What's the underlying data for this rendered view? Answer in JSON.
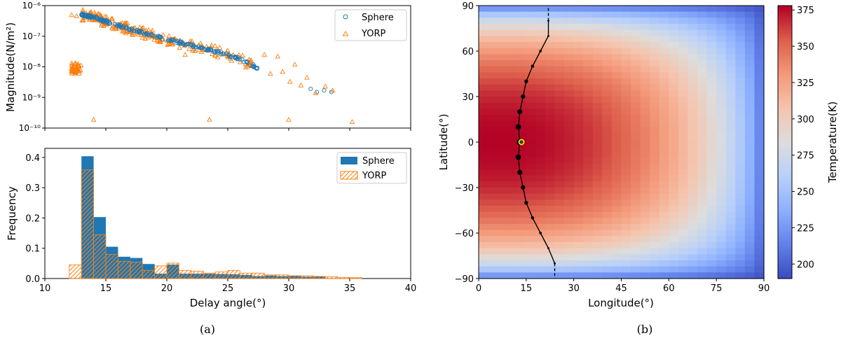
{
  "chart_data": [
    {
      "type": "scatter",
      "xlabel": "",
      "ylabel": "Magnitude(N/m²)",
      "xlim": [
        10,
        40
      ],
      "yscale": "log",
      "ylim": [
        1e-10,
        1e-06
      ],
      "y_ticks": [
        "10⁻¹⁰",
        "10⁻⁹",
        "10⁻⁸",
        "10⁻⁷",
        "10⁻⁶"
      ],
      "y_tick_values": [
        1e-10,
        1e-09,
        1e-08,
        1e-07,
        1e-06
      ],
      "legend": [
        "Sphere",
        "YORP"
      ],
      "legend_position": "top-right",
      "colors": {
        "sphere": "#1f77b4",
        "yorp": "#ff7f0e"
      },
      "sphere_trend": [
        [
          13,
          5e-07
        ],
        [
          14,
          4.2e-07
        ],
        [
          15,
          3e-07
        ],
        [
          16,
          2.3e-07
        ],
        [
          17,
          1.7e-07
        ],
        [
          18,
          1.3e-07
        ],
        [
          20,
          8e-08
        ],
        [
          22,
          5e-08
        ],
        [
          24,
          3.2e-08
        ],
        [
          26,
          1.8e-08
        ],
        [
          27.5,
          9e-09
        ]
      ],
      "sphere_outliers": [
        [
          31.8,
          1.9e-09
        ],
        [
          32.3,
          1.5e-09
        ],
        [
          32.9,
          1.7e-09
        ],
        [
          33.5,
          1.5e-09
        ]
      ],
      "yorp_outliers": [
        [
          12.2,
          5e-07
        ],
        [
          12.6,
          4.6e-07
        ],
        [
          14,
          1.9e-10
        ],
        [
          21.5,
          2.5e-08
        ],
        [
          23.5,
          1.9e-10
        ],
        [
          26.8,
          1.2e-08
        ],
        [
          28,
          2.5e-08
        ],
        [
          28.5,
          6e-09
        ],
        [
          29.1,
          2.2e-08
        ],
        [
          29.5,
          7e-09
        ],
        [
          30.1,
          3.3e-09
        ],
        [
          30.5,
          1.2e-08
        ],
        [
          31,
          2.5e-09
        ],
        [
          31.5,
          4.5e-09
        ],
        [
          32.2,
          1.4e-09
        ],
        [
          33,
          2.3e-09
        ],
        [
          33.6,
          1.7e-09
        ],
        [
          30,
          1.9e-10
        ],
        [
          35.2,
          1.6e-10
        ]
      ]
    },
    {
      "type": "bar",
      "xlabel": "Delay angle(°)",
      "ylabel": "Frequency",
      "xlim": [
        10,
        40
      ],
      "ylim": [
        0,
        0.43
      ],
      "x_ticks": [
        "10",
        "15",
        "20",
        "25",
        "30",
        "35",
        "40"
      ],
      "y_ticks": [
        "0.0",
        "0.1",
        "0.2",
        "0.3",
        "0.4"
      ],
      "legend": [
        "Sphere",
        "YORP"
      ],
      "legend_position": "top-right",
      "colors": {
        "sphere": "#1f77b4",
        "yorp": "#ff7f0e"
      },
      "sphere_bins": {
        "start": 13.0,
        "width": 1.0,
        "values": [
          0.404,
          0.203,
          0.105,
          0.072,
          0.068,
          0.048,
          0.016,
          0.046,
          0.016,
          0.016,
          0.016,
          0.015,
          0.014,
          0.012,
          0.008,
          0.01,
          0.008,
          0.009,
          0.006,
          0.007
        ]
      },
      "yorp_bins": {
        "start": 12.0,
        "width": 1.0,
        "values": [
          0.045,
          0.359,
          0.145,
          0.08,
          0.057,
          0.054,
          0.027,
          0.042,
          0.051,
          0.027,
          0.024,
          0.018,
          0.022,
          0.027,
          0.018,
          0.018,
          0.012,
          0.012,
          0.009,
          0.009,
          0.007,
          0.006,
          0.004,
          0.003
        ]
      }
    },
    {
      "type": "heatmap",
      "xlabel": "Longitude(°)",
      "ylabel": "Latitude(°)",
      "xlim": [
        0,
        90
      ],
      "ylim": [
        -90,
        90
      ],
      "x_ticks": [
        "0",
        "15",
        "30",
        "45",
        "60",
        "75",
        "90"
      ],
      "y_ticks": [
        "90",
        "60",
        "30",
        "0",
        "−30",
        "−60",
        "−90"
      ],
      "x_tick_values": [
        0,
        15,
        30,
        45,
        60,
        75,
        90
      ],
      "y_tick_values": [
        90,
        60,
        30,
        0,
        -30,
        -60,
        -90
      ],
      "colorbar_label": "Temperature(K)",
      "colorbar_range": [
        190,
        378
      ],
      "colorbar_ticks": [
        "200",
        "225",
        "250",
        "275",
        "300",
        "325",
        "350",
        "375"
      ],
      "colorbar_tick_values": [
        200,
        225,
        250,
        275,
        300,
        325,
        350,
        375
      ],
      "grid_size": [
        30,
        45
      ],
      "peak_temperature_track": [
        [
          24,
          -90
        ],
        [
          24,
          -80
        ],
        [
          22,
          -70
        ],
        [
          19.5,
          -60
        ],
        [
          17,
          -50
        ],
        [
          15,
          -40
        ],
        [
          14,
          -30
        ],
        [
          13,
          -20
        ],
        [
          12.5,
          -10
        ],
        [
          13,
          0
        ],
        [
          12.5,
          10
        ],
        [
          13,
          20
        ],
        [
          14,
          30
        ],
        [
          15,
          40
        ],
        [
          17,
          50
        ],
        [
          19.5,
          60
        ],
        [
          22,
          70
        ],
        [
          22,
          80
        ],
        [
          22,
          90
        ]
      ],
      "subsolar_point": [
        13.5,
        0
      ]
    }
  ],
  "captions": {
    "left": "(a)",
    "right": "(b)"
  }
}
